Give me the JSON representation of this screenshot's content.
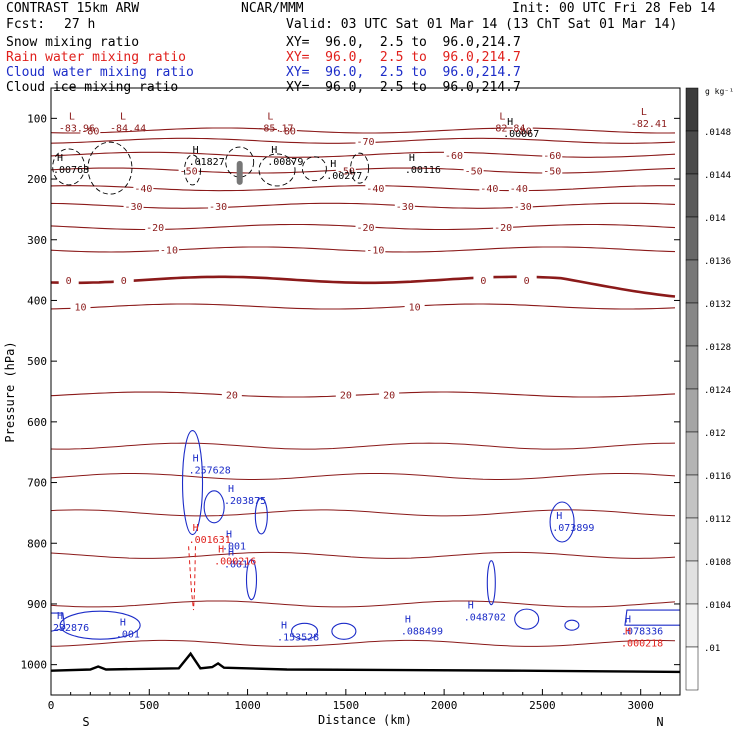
{
  "header": {
    "model": "CONTRAST 15km ARW",
    "org": "NCAR/MMM",
    "init": "Init: 00 UTC Fri 28 Feb 14",
    "fcst_label": "Fcst:",
    "fcst_value": "27 h",
    "valid": "Valid: 03 UTC Sat 01 Mar 14 (13 ChT Sat 01 Mar 14)"
  },
  "fields": [
    {
      "name": "Snow mixing ratio",
      "xy": "XY=  96.0,  2.5 to  96.0,214.7",
      "color": "#000000"
    },
    {
      "name": "Rain water mixing ratio",
      "xy": "XY=  96.0,  2.5 to  96.0,214.7",
      "color": "#e0201c"
    },
    {
      "name": "Cloud water mixing ratio",
      "xy": "XY=  96.0,  2.5 to  96.0,214.7",
      "color": "#1c2cc8"
    },
    {
      "name": "Cloud ice mixing ratio",
      "xy": "XY=  96.0,  2.5 to  96.0,214.7",
      "color": "#000000"
    }
  ],
  "colors": {
    "temperature_contour": "#8b1a1a",
    "rain": "#e0201c",
    "cloud_water": "#1c2cc8",
    "terrain": "#000000"
  },
  "chart_data": {
    "type": "contour cross-section",
    "xlabel": "Distance (km)",
    "ylabel": "Pressure (hPa)",
    "xlim": [
      0,
      3200
    ],
    "ylim": [
      1050,
      50
    ],
    "x_ticks": [
      0,
      500,
      1000,
      1500,
      2000,
      2500,
      3000
    ],
    "y_ticks": [
      100,
      200,
      300,
      400,
      500,
      600,
      700,
      800,
      900,
      1000
    ],
    "x_end_labels": {
      "left": "S",
      "right": "N"
    },
    "colorbar": {
      "unit": "g kg⁻¹",
      "ticks": [
        ".0148",
        ".0144",
        ".014",
        ".0136",
        ".0132",
        ".0128",
        ".0124",
        ".012",
        ".0116",
        ".0112",
        ".0108",
        ".0104",
        ".01"
      ],
      "tick_values": [
        0.0148,
        0.0144,
        0.014,
        0.0136,
        0.0132,
        0.0128,
        0.0124,
        0.012,
        0.0116,
        0.0112,
        0.0108,
        0.0104,
        0.01
      ]
    },
    "temperature_levels": [
      {
        "label": "-80",
        "base_p": 120,
        "labels_at": [
          200,
          1200,
          2400
        ],
        "heavy": false
      },
      {
        "label": "-70",
        "base_p": 137,
        "labels_at": [
          1600
        ],
        "heavy": false
      },
      {
        "label": "-60",
        "base_p": 160,
        "labels_at": [
          2050,
          2550
        ],
        "heavy": false
      },
      {
        "label": "-50",
        "base_p": 186,
        "labels_at": [
          700,
          1500,
          2150,
          2550
        ],
        "heavy": false
      },
      {
        "label": "-40",
        "base_p": 215,
        "labels_at": [
          470,
          1650,
          2230,
          2380
        ],
        "heavy": false
      },
      {
        "label": "-30",
        "base_p": 244,
        "labels_at": [
          420,
          850,
          1800,
          2400
        ],
        "heavy": false
      },
      {
        "label": "-20",
        "base_p": 279,
        "labels_at": [
          530,
          1600,
          2300
        ],
        "heavy": false
      },
      {
        "label": "-10",
        "base_p": 316,
        "labels_at": [
          600,
          1650
        ],
        "heavy": false
      },
      {
        "label": "0",
        "base_p": 366,
        "labels_at": [
          90,
          370,
          2200,
          2420
        ],
        "heavy": true
      },
      {
        "label": "10",
        "base_p": 410,
        "labels_at": [
          150,
          1850
        ],
        "heavy": false
      },
      {
        "label": "20",
        "base_p": 555,
        "labels_at": [
          920,
          1500,
          1720
        ],
        "heavy": false
      }
    ],
    "maxima": [
      {
        "x": 0,
        "p": 185,
        "field": "snow",
        "label": ".00763"
      },
      {
        "x": 700,
        "p": 172,
        "field": "snow",
        "label": ".01827"
      },
      {
        "x": 1100,
        "p": 172,
        "field": "snow",
        "label": ".00879"
      },
      {
        "x": 1400,
        "p": 195,
        "field": "snow",
        "label": ".00277"
      },
      {
        "x": 1800,
        "p": 185,
        "field": "snow",
        "label": ".00116"
      },
      {
        "x": 2300,
        "p": 126,
        "field": "ice",
        "label": ".00067"
      },
      {
        "x": 40,
        "p": 115,
        "field": "ice",
        "label": "-83.96"
      },
      {
        "x": 300,
        "p": 115,
        "field": "ice",
        "label": "-84.44"
      },
      {
        "x": 1050,
        "p": 115,
        "field": "ice",
        "label": "-85.17"
      },
      {
        "x": 2230,
        "p": 115,
        "field": "ice",
        "label": "-82.84"
      },
      {
        "x": 2950,
        "p": 108,
        "field": "ice",
        "label": "-82.41"
      },
      {
        "x": 700,
        "p": 680,
        "field": "cloud_water",
        "label": ".257628"
      },
      {
        "x": 880,
        "p": 730,
        "field": "cloud_water",
        "label": ".203875"
      },
      {
        "x": 870,
        "p": 805,
        "field": "cloud_water",
        "label": ".001"
      },
      {
        "x": 880,
        "p": 835,
        "field": "cloud_water",
        "label": ".001"
      },
      {
        "x": 700,
        "p": 795,
        "field": "rain",
        "label": ".001631"
      },
      {
        "x": 830,
        "p": 830,
        "field": "rain",
        "label": ".000216"
      },
      {
        "x": 2550,
        "p": 775,
        "field": "cloud_water",
        "label": ".073899"
      },
      {
        "x": 0,
        "p": 940,
        "field": "cloud_water",
        "label": "232876"
      },
      {
        "x": 330,
        "p": 950,
        "field": "cloud_water",
        "label": ".001"
      },
      {
        "x": 1150,
        "p": 955,
        "field": "cloud_water",
        "label": ".153528"
      },
      {
        "x": 1780,
        "p": 945,
        "field": "cloud_water",
        "label": ".088499"
      },
      {
        "x": 2100,
        "p": 922,
        "field": "cloud_water",
        "label": ".048702"
      },
      {
        "x": 2900,
        "p": 945,
        "field": "cloud_water",
        "label": ".078336"
      },
      {
        "x": 2900,
        "p": 965,
        "field": "rain",
        "label": ".000218"
      }
    ],
    "terrain": {
      "x": [
        0,
        200,
        240,
        280,
        650,
        710,
        760,
        820,
        850,
        880,
        1200,
        1800,
        2400,
        2800,
        3200
      ],
      "p": [
        1010,
        1008,
        1003,
        1008,
        1006,
        982,
        1006,
        1004,
        998,
        1005,
        1008,
        1009,
        1010,
        1011,
        1012
      ]
    }
  }
}
